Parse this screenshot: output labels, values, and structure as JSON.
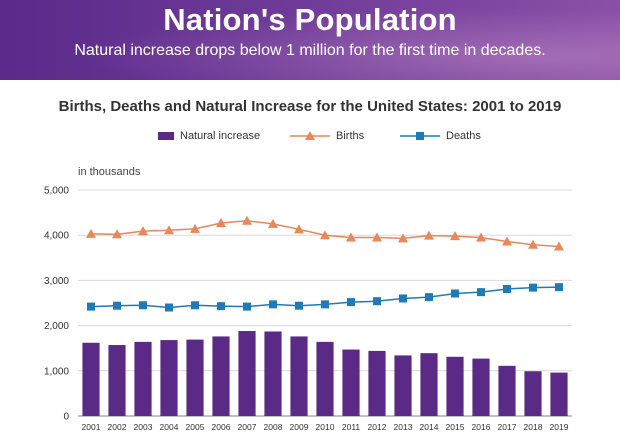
{
  "banner": {
    "title": "Nation's Population",
    "subtitle": "Natural increase drops below 1 million for the first time in decades."
  },
  "colors": {
    "banner_left": "#5a2a8a",
    "banner_right": "#8a4fa8",
    "natural_increase": "#5b2a86",
    "births": "#e8875a",
    "deaths": "#1f7ab8",
    "gridline": "#d9d9d9"
  },
  "chart_data": {
    "type": "bar",
    "title": "Births, Deaths and Natural Increase for the United States: 2001 to 2019",
    "unit_label": "in thousands",
    "categories": [
      "2001",
      "2002",
      "2003",
      "2004",
      "2005",
      "2006",
      "2007",
      "2008",
      "2009",
      "2010",
      "2011",
      "2012",
      "2013",
      "2014",
      "2015",
      "2016",
      "2017",
      "2018",
      "2019"
    ],
    "ylim": [
      0,
      5000
    ],
    "yticks": [
      0,
      1000,
      2000,
      3000,
      4000,
      5000
    ],
    "ytick_labels": [
      "0",
      "1,000",
      "2,000",
      "3,000",
      "4,000",
      "5,000"
    ],
    "grid": true,
    "legend_position": "top",
    "series": [
      {
        "name": "Natural increase",
        "type": "bar",
        "values": [
          1620,
          1570,
          1640,
          1680,
          1690,
          1760,
          1880,
          1870,
          1760,
          1640,
          1470,
          1440,
          1340,
          1390,
          1310,
          1270,
          1110,
          990,
          960
        ]
      },
      {
        "name": "Births",
        "type": "line",
        "marker": "triangle",
        "values": [
          4030,
          4020,
          4090,
          4110,
          4140,
          4270,
          4320,
          4250,
          4130,
          4000,
          3950,
          3950,
          3930,
          3990,
          3980,
          3950,
          3860,
          3790,
          3750
        ]
      },
      {
        "name": "Deaths",
        "type": "line",
        "marker": "square",
        "values": [
          2420,
          2440,
          2450,
          2400,
          2450,
          2430,
          2420,
          2470,
          2440,
          2470,
          2520,
          2540,
          2600,
          2630,
          2710,
          2740,
          2810,
          2840,
          2850
        ]
      }
    ]
  }
}
